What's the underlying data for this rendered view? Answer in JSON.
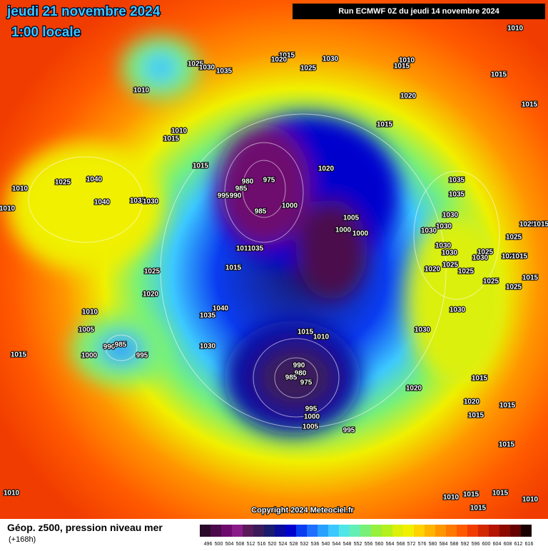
{
  "header": {
    "date": "jeudi 21 novembre 2024",
    "time": "1:00 locale",
    "run": "Run ECMWF 0Z du jeudi 14 novembre 2024"
  },
  "copyright": "Copyright 2024 Meteociel.fr",
  "footer": {
    "title": "Géop. z500, pression niveau mer",
    "lead": "(+168h)"
  },
  "legend": {
    "labels": [
      496,
      500,
      504,
      508,
      512,
      516,
      520,
      524,
      528,
      532,
      536,
      540,
      544,
      548,
      552,
      556,
      560,
      564,
      568,
      572,
      576,
      580,
      584,
      588,
      592,
      596,
      600,
      604,
      608,
      612,
      616
    ],
    "colors": [
      "#2a0a2a",
      "#4b0a4b",
      "#6e0a6e",
      "#8a1a8a",
      "#5a1a5a",
      "#3a1a5a",
      "#1a1a6e",
      "#0a0a9e",
      "#0000cd",
      "#0a3cf0",
      "#1e6eff",
      "#28a0ff",
      "#3cc8ff",
      "#50e6e6",
      "#64f0b4",
      "#78f078",
      "#96f03c",
      "#b4f01e",
      "#dcf00a",
      "#f0f000",
      "#ffd200",
      "#ffb400",
      "#ff9600",
      "#ff7800",
      "#ff5a00",
      "#f03c00",
      "#d22800",
      "#b41400",
      "#8c0a00",
      "#640000",
      "#1a0000"
    ]
  },
  "pressure_labels": [
    1010,
    1015,
    1030,
    1020,
    1025,
    1010,
    1015,
    1025,
    1030,
    1035,
    1015,
    1010,
    1020,
    1015,
    1015,
    1010,
    1015,
    1015,
    1020,
    980,
    975,
    1025,
    1040,
    1035,
    1010,
    985,
    995,
    990,
    1035,
    1040,
    1035,
    1030,
    1010,
    985,
    1000,
    1030,
    1005,
    1030,
    1000,
    1000,
    1030,
    1025,
    1015,
    1025,
    1030,
    1030,
    1010,
    1035,
    1020,
    1015,
    1025,
    1030,
    1015,
    1020,
    1025,
    1025,
    1025,
    1015,
    1025,
    1025,
    1020,
    1040,
    1035,
    1030,
    1010,
    1015,
    1010,
    1030,
    1005,
    990,
    985,
    995,
    1000,
    1030,
    1015,
    990,
    980,
    985,
    975,
    1015,
    1020,
    1020,
    1015,
    1015,
    995,
    1000,
    1005,
    995,
    1015,
    1010,
    1010,
    1015,
    1015,
    1010,
    1015
  ]
}
